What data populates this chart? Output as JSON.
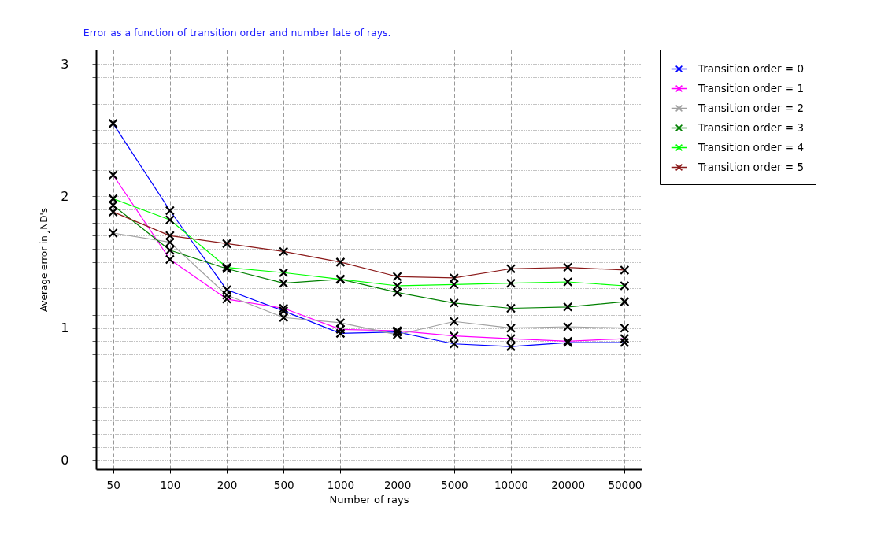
{
  "chart_data": {
    "type": "line",
    "title": "Error as a function of transition order and number late of rays.",
    "xlabel": "Number of rays",
    "ylabel": "Average error in JND's",
    "categories": [
      "50",
      "100",
      "200",
      "500",
      "1000",
      "2000",
      "5000",
      "10000",
      "20000",
      "50000"
    ],
    "series": [
      {
        "name": "Transition order = 0",
        "color": "#0000ff",
        "values": [
          2.55,
          1.89,
          1.29,
          1.13,
          0.96,
          0.97,
          0.88,
          0.86,
          0.89,
          0.89
        ]
      },
      {
        "name": "Transition order = 1",
        "color": "#ff00ff",
        "values": [
          2.16,
          1.52,
          1.22,
          1.15,
          0.99,
          0.98,
          0.94,
          0.92,
          0.9,
          0.92
        ]
      },
      {
        "name": "Transition order = 2",
        "color": "#a0a0a0",
        "values": [
          1.72,
          1.65,
          1.25,
          1.08,
          1.04,
          0.95,
          1.05,
          1.0,
          1.01,
          1.0
        ]
      },
      {
        "name": "Transition order = 3",
        "color": "#008000",
        "values": [
          1.93,
          1.59,
          1.45,
          1.34,
          1.37,
          1.27,
          1.19,
          1.15,
          1.16,
          1.2
        ]
      },
      {
        "name": "Transition order = 4",
        "color": "#00ff00",
        "values": [
          1.98,
          1.82,
          1.46,
          1.42,
          1.37,
          1.32,
          1.33,
          1.34,
          1.35,
          1.32
        ]
      },
      {
        "name": "Transition order = 5",
        "color": "#8b1a1a",
        "values": [
          1.88,
          1.7,
          1.64,
          1.58,
          1.5,
          1.39,
          1.38,
          1.45,
          1.46,
          1.44
        ]
      }
    ],
    "ylim": [
      -0.07,
      3.11
    ],
    "yticks": [
      0,
      {
        "value": 0.1,
        "label": null
      },
      {
        "value": 0.2,
        "label": null
      },
      {
        "value": 0.3,
        "label": null
      },
      {
        "value": 0.4,
        "label": null
      },
      {
        "value": 0.5,
        "label": null
      },
      {
        "value": 0.6,
        "label": null
      },
      {
        "value": 0.7,
        "label": null
      },
      {
        "value": 0.8,
        "label": null
      },
      {
        "value": 0.9,
        "label": null
      },
      1,
      {
        "value": 1.1,
        "label": null
      },
      {
        "value": 1.2,
        "label": null
      },
      {
        "value": 1.3,
        "label": null
      },
      {
        "value": 1.4,
        "label": null
      },
      {
        "value": 1.5,
        "label": null
      },
      {
        "value": 1.6,
        "label": null
      },
      {
        "value": 1.7,
        "label": null
      },
      {
        "value": 1.8,
        "label": null
      },
      {
        "value": 1.9,
        "label": null
      },
      2,
      {
        "value": 2.1,
        "label": null
      },
      {
        "value": 2.2,
        "label": null
      },
      {
        "value": 2.3,
        "label": null
      },
      {
        "value": 2.4,
        "label": null
      },
      {
        "value": 2.5,
        "label": null
      },
      {
        "value": 2.6,
        "label": null
      },
      {
        "value": 2.7,
        "label": null
      },
      {
        "value": 2.8,
        "label": null
      },
      {
        "value": 2.9,
        "label": null
      },
      3
    ],
    "grid": true,
    "legend": "top right",
    "marker": "cross",
    "line_style": "solid"
  }
}
